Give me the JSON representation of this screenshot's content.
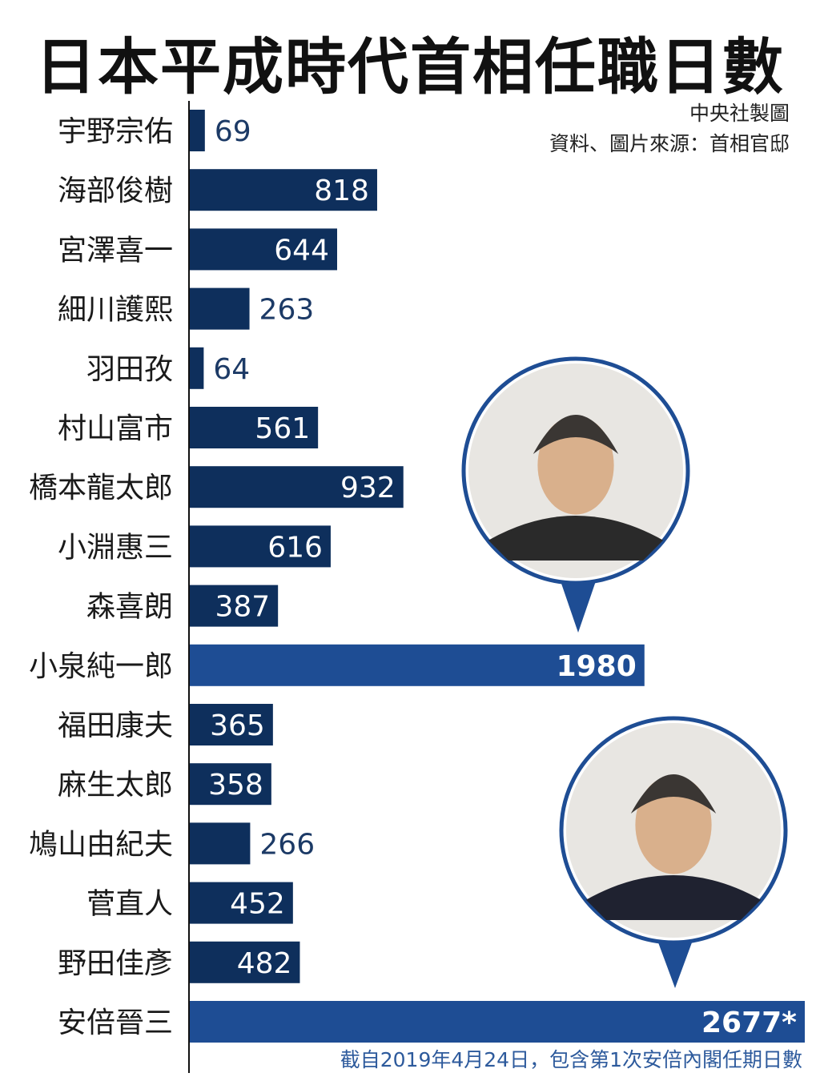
{
  "title": "日本平成時代首相任職日數",
  "credit_line1": "中央社製圖",
  "credit_line2": "資料、圖片來源：首相官邸",
  "footnote": "截自2019年4月24日，包含第1次安倍內閣任期日數",
  "colors": {
    "bar": "#0e2f5c",
    "highlight_bar": "#1e4d94",
    "axis": "#111111",
    "portrait_ring": "#1e4d94"
  },
  "chart_data": {
    "type": "bar",
    "orientation": "horizontal",
    "categories": [
      "宇野宗佑",
      "海部俊樹",
      "宮澤喜一",
      "細川護熙",
      "羽田孜",
      "村山富市",
      "橋本龍太郎",
      "小淵惠三",
      "森喜朗",
      "小泉純一郎",
      "福田康夫",
      "麻生太郎",
      "鳩山由紀夫",
      "菅直人",
      "野田佳彥",
      "安倍晉三"
    ],
    "values": [
      69,
      818,
      644,
      263,
      64,
      561,
      932,
      616,
      387,
      1980,
      365,
      358,
      266,
      452,
      482,
      2677
    ],
    "value_labels": [
      "69",
      "818",
      "644",
      "263",
      "64",
      "561",
      "932",
      "616",
      "387",
      "1980",
      "365",
      "358",
      "266",
      "452",
      "482",
      "2677*"
    ],
    "highlighted": [
      "小泉純一郎",
      "安倍晉三"
    ],
    "xlim": [
      0,
      2677
    ]
  }
}
